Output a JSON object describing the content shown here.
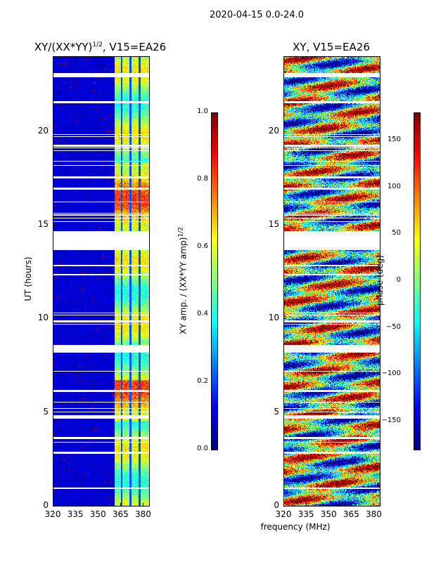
{
  "figure": {
    "suptitle": "2020-04-15 0.0-24.0",
    "xlabel": "frequency (MHz)"
  },
  "chart_data": [
    {
      "type": "heatmap",
      "title_main": "XY/(XX*YY)",
      "title_sup": "1/2",
      "title_tail": ", V15=EA26",
      "xlabel": "frequency (MHz)",
      "ylabel": "UT (hours)",
      "xlim": [
        320,
        384
      ],
      "ylim": [
        0,
        24
      ],
      "xticks": [
        "320",
        "335",
        "350",
        "365",
        "380"
      ],
      "xtick_values": [
        320,
        335,
        350,
        365,
        380
      ],
      "yticks": [
        "0",
        "5",
        "10",
        "15",
        "20"
      ],
      "ytick_values": [
        0,
        5,
        10,
        15,
        20
      ],
      "colorbar": {
        "label_main": "XY amp. / (XX*YY amp)",
        "label_sup": "1/2",
        "range": [
          0.0,
          1.0
        ],
        "ticks": [
          "0.0",
          "0.2",
          "0.4",
          "0.6",
          "0.8",
          "1.0"
        ],
        "tick_values": [
          0.0,
          0.2,
          0.4,
          0.6,
          0.8,
          1.0
        ],
        "colormap": "jet"
      },
      "description_values": {
        "low_freq_level": 0.05,
        "high_freq_band_mhz": [
          361,
          384
        ],
        "high_freq_level": 0.45
      }
    },
    {
      "type": "heatmap",
      "title_main": "XY, V15=EA26",
      "xlabel": "frequency (MHz)",
      "ylabel": "",
      "xlim": [
        320,
        384
      ],
      "ylim": [
        0,
        24
      ],
      "xticks": [
        "320",
        "335",
        "350",
        "365",
        "380"
      ],
      "xtick_values": [
        320,
        335,
        350,
        365,
        380
      ],
      "yticks": [
        "0",
        "5",
        "10",
        "15",
        "20"
      ],
      "ytick_values": [
        0,
        5,
        10,
        15,
        20
      ],
      "colorbar": {
        "label_main": "phase (deg)",
        "range": [
          -180,
          180
        ],
        "ticks": [
          "−150",
          "−100",
          "−50",
          "0",
          "50",
          "100",
          "150"
        ],
        "tick_values": [
          -150,
          -100,
          -50,
          0,
          50,
          100,
          150
        ],
        "colormap": "jet"
      }
    }
  ],
  "gaps_hours": [
    [
      13.65,
      14.7
    ],
    [
      8.2,
      8.6
    ],
    [
      4.65,
      4.85
    ],
    [
      0.9,
      1.0
    ],
    [
      2.8,
      2.9
    ],
    [
      22.9,
      23.1
    ],
    [
      21.5,
      21.6
    ],
    [
      17.5,
      17.6
    ],
    [
      9.8,
      9.9
    ],
    [
      12.3,
      12.4
    ],
    [
      16.9,
      17.0
    ],
    [
      6.1,
      6.2
    ],
    [
      3.6,
      3.7
    ],
    [
      19.2,
      19.3
    ],
    [
      15.5,
      15.6
    ]
  ],
  "colors": {
    "frame": "#000000",
    "gap": "#ffffff"
  }
}
